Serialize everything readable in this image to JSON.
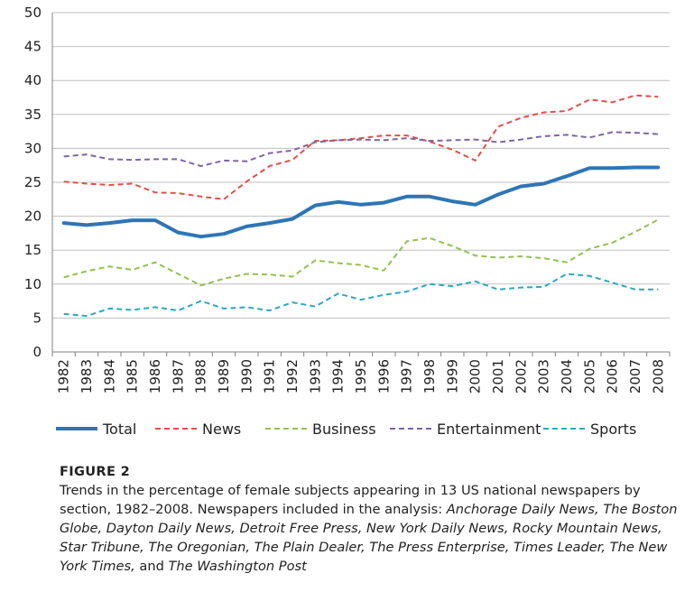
{
  "chart_data": {
    "type": "line",
    "ylim": [
      0,
      50
    ],
    "yticks": [
      0,
      5,
      10,
      15,
      20,
      25,
      30,
      35,
      40,
      45,
      50
    ],
    "categories": [
      "1982",
      "1983",
      "1984",
      "1985",
      "1986",
      "1987",
      "1988",
      "1989",
      "1990",
      "1991",
      "1992",
      "1993",
      "1994",
      "1995",
      "1996",
      "1997",
      "1998",
      "1999",
      "2000",
      "2001",
      "2002",
      "2003",
      "2004",
      "2005",
      "2006",
      "2007",
      "2008"
    ],
    "grid": true,
    "legend_position": "bottom",
    "series": [
      {
        "name": "Total",
        "color": "#2e75b6",
        "style": "solid",
        "values": [
          19.0,
          18.7,
          19.0,
          19.4,
          19.4,
          17.6,
          17.0,
          17.4,
          18.5,
          19.0,
          19.6,
          21.6,
          22.1,
          21.7,
          22.0,
          22.9,
          22.9,
          22.2,
          21.7,
          23.2,
          24.4,
          24.8,
          25.9,
          27.1,
          27.1,
          27.2,
          27.2
        ]
      },
      {
        "name": "News",
        "color": "#e0504a",
        "style": "dashed",
        "values": [
          25.1,
          24.8,
          24.6,
          24.8,
          23.5,
          23.4,
          22.9,
          22.5,
          25.1,
          27.4,
          28.3,
          31.1,
          31.2,
          31.5,
          31.9,
          31.9,
          31.0,
          29.8,
          28.2,
          33.2,
          34.5,
          35.3,
          35.5,
          37.2,
          36.8,
          37.8,
          37.6
        ]
      },
      {
        "name": "Business",
        "color": "#92c050",
        "style": "dashed",
        "values": [
          11.0,
          11.9,
          12.6,
          12.1,
          13.2,
          11.5,
          9.8,
          10.8,
          11.5,
          11.4,
          11.1,
          13.5,
          13.1,
          12.8,
          12.0,
          16.3,
          16.8,
          15.6,
          14.2,
          13.9,
          14.1,
          13.8,
          13.2,
          15.2,
          16.1,
          17.7,
          19.5
        ]
      },
      {
        "name": "Entertainment",
        "color": "#8064a2",
        "style": "dashed",
        "values": [
          28.8,
          29.1,
          28.4,
          28.3,
          28.4,
          28.4,
          27.4,
          28.2,
          28.1,
          29.3,
          29.7,
          30.9,
          31.2,
          31.3,
          31.2,
          31.5,
          31.1,
          31.2,
          31.3,
          30.9,
          31.3,
          31.8,
          32.0,
          31.6,
          32.4,
          32.3,
          32.1
        ]
      },
      {
        "name": "Sports",
        "color": "#2ea7c2",
        "style": "dashed",
        "values": [
          5.6,
          5.3,
          6.4,
          6.2,
          6.6,
          6.1,
          7.5,
          6.4,
          6.6,
          6.1,
          7.3,
          6.7,
          8.6,
          7.7,
          8.4,
          8.9,
          10.0,
          9.7,
          10.4,
          9.2,
          9.5,
          9.6,
          11.5,
          11.2,
          10.2,
          9.2,
          9.2
        ]
      }
    ]
  },
  "caption": {
    "label": "FIGURE 2",
    "text_before": "Trends in the percentage of female subjects appearing in 13 US national newspapers by section, 1982–2008. Newspapers included in the analysis: ",
    "papers_italic_1": "Anchorage Daily News, The Boston Globe, Dayton Daily News, Detroit Free Press, New York Daily News, Rocky Mountain News, Star Tribune, The Oregonian, The Plain Dealer, The Press Enterprise, Times Leader, The New York Times,",
    "text_and": " and ",
    "papers_italic_2": "The Washington Post"
  }
}
